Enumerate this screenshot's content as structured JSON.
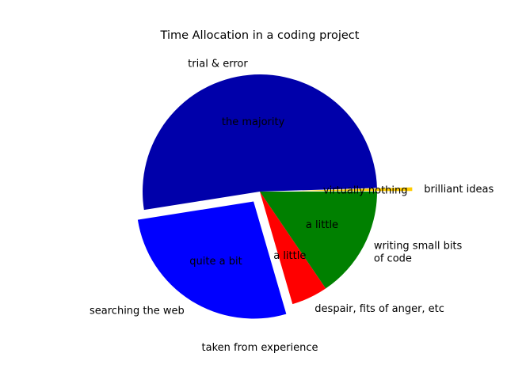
{
  "chart_data": {
    "type": "pie",
    "title": "Time Allocation in a coding project",
    "caption": "taken from experience",
    "start_angle_deg": 0,
    "direction": "counterclockwise",
    "slices": [
      {
        "label": "brilliant ideas",
        "value": 0.5,
        "pct_label": "virtually nothing",
        "color": "#ffcc00",
        "explode": 0.3
      },
      {
        "label": "trial & error",
        "value": 52,
        "pct_label": "the majority",
        "color": "#0000aa",
        "explode": 0
      },
      {
        "label": "searching the web",
        "value": 27,
        "pct_label": "quite a bit",
        "color": "#0000ff",
        "explode": 0.1
      },
      {
        "label": "despair, fits of anger, etc",
        "value": 5,
        "pct_label": "a little",
        "color": "#ff0000",
        "explode": 0
      },
      {
        "label": "writing small bits\nof code",
        "value": 15.5,
        "pct_label": "a little",
        "color": "#008000",
        "explode": 0
      }
    ]
  }
}
